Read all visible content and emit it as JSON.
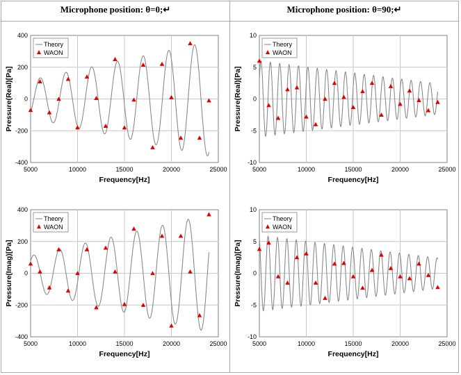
{
  "headers": {
    "left": "Microphone position: θ=0;↵",
    "right": "Microphone position: θ=90;↵"
  },
  "colors": {
    "theory_line": "#8a8a8a",
    "waon_marker": "#e00000",
    "grid": "#c8c8c8",
    "plot_bg": "#ffffff",
    "chart_bg": "#ffffff"
  },
  "chart_data": [
    {
      "id": "chart1",
      "type": "line",
      "title": "",
      "xlabel": "Frequency[Hz]",
      "ylabel": "Pressure(Real)[Pa]",
      "xlim": [
        5000,
        25000
      ],
      "ylim": [
        -400,
        400
      ],
      "xticks": [
        5000,
        10000,
        15000,
        20000,
        25000
      ],
      "yticks": [
        -400,
        -200,
        0,
        200,
        400
      ],
      "grid": true,
      "legend": "top-left",
      "legend_entries": [
        "Theory",
        "WAON"
      ],
      "theory_model": {
        "amp": [
          120,
          360
        ],
        "period_hz": 2740,
        "phase": -0.79,
        "f_start": 5000,
        "f_end": 24000
      },
      "series": [
        {
          "name": "WAON",
          "marker": "triangle",
          "x": [
            5000,
            6000,
            7000,
            8000,
            9000,
            10000,
            11000,
            12000,
            13000,
            14000,
            15000,
            16000,
            17000,
            18000,
            19000,
            20000,
            21000,
            22000,
            23000,
            24000
          ],
          "y": [
            -70,
            110,
            -85,
            0,
            125,
            -180,
            140,
            5,
            -170,
            250,
            -180,
            -5,
            215,
            -305,
            220,
            10,
            -245,
            350,
            -245,
            -10
          ]
        }
      ]
    },
    {
      "id": "chart2",
      "type": "line",
      "title": "",
      "xlabel": "Frequency[Hz]",
      "ylabel": "Pressure(Real)[Pa]",
      "xlim": [
        5000,
        25000
      ],
      "ylim": [
        -10,
        10
      ],
      "xticks": [
        5000,
        10000,
        15000,
        20000,
        25000
      ],
      "yticks": [
        -10,
        -5,
        0,
        5,
        10
      ],
      "grid": true,
      "legend": "top-left",
      "legend_entries": [
        "Theory",
        "WAON"
      ],
      "theory_model": {
        "amp": [
          6,
          2.4
        ],
        "period_hz": 1000,
        "phase": 0.5,
        "f_start": 5000,
        "f_end": 24000
      },
      "series": [
        {
          "name": "WAON",
          "marker": "triangle",
          "x": [
            5000,
            6000,
            7000,
            8000,
            9000,
            10000,
            11000,
            12000,
            13000,
            14000,
            15000,
            16000,
            17000,
            18000,
            19000,
            20000,
            21000,
            22000,
            23000,
            24000
          ],
          "y": [
            6,
            -1,
            -3,
            1.5,
            1.8,
            -2.8,
            -4,
            0,
            2.5,
            0.3,
            -1.3,
            1.2,
            2.5,
            -2.5,
            2,
            -0.8,
            1.3,
            -0.2,
            -1.8,
            -0.5
          ]
        }
      ]
    },
    {
      "id": "chart3",
      "type": "line",
      "title": "",
      "xlabel": "Frequency[Hz]",
      "ylabel": "Pressure(Imag)[Pa]",
      "xlim": [
        5000,
        25000
      ],
      "ylim": [
        -400,
        400
      ],
      "xticks": [
        5000,
        10000,
        15000,
        20000,
        25000
      ],
      "yticks": [
        -400,
        -200,
        0,
        200,
        400
      ],
      "grid": true,
      "legend": "top-left",
      "legend_entries": [
        "Theory",
        "WAON"
      ],
      "theory_model": {
        "amp": [
          110,
          370
        ],
        "period_hz": 2740,
        "phase": 0.78,
        "f_start": 5000,
        "f_end": 24000
      },
      "series": [
        {
          "name": "WAON",
          "marker": "triangle",
          "x": [
            5000,
            6000,
            7000,
            8000,
            9000,
            10000,
            11000,
            12000,
            13000,
            14000,
            15000,
            16000,
            17000,
            18000,
            19000,
            20000,
            21000,
            22000,
            23000,
            24000
          ],
          "y": [
            60,
            10,
            -90,
            150,
            -110,
            0,
            150,
            -215,
            160,
            10,
            -195,
            280,
            -200,
            0,
            235,
            -330,
            235,
            10,
            -265,
            370
          ]
        }
      ]
    },
    {
      "id": "chart4",
      "type": "line",
      "title": "",
      "xlabel": "Frequency[Hz]",
      "ylabel": "Pressure(Imag)[Pa]",
      "xlim": [
        5000,
        25000
      ],
      "ylim": [
        -10,
        10
      ],
      "xticks": [
        5000,
        10000,
        15000,
        20000,
        25000
      ],
      "yticks": [
        -10,
        -5,
        0,
        5,
        10
      ],
      "grid": true,
      "legend": "top-left",
      "legend_entries": [
        "Theory",
        "WAON"
      ],
      "theory_model": {
        "amp": [
          6,
          2.4
        ],
        "period_hz": 1000,
        "phase": 2.0,
        "f_start": 5000,
        "f_end": 24000
      },
      "series": [
        {
          "name": "WAON",
          "marker": "triangle",
          "x": [
            5000,
            6000,
            7000,
            8000,
            9000,
            10000,
            11000,
            12000,
            13000,
            14000,
            15000,
            16000,
            17000,
            18000,
            19000,
            20000,
            21000,
            22000,
            23000,
            24000
          ],
          "y": [
            3.8,
            4.8,
            -0.5,
            -1.5,
            2.5,
            3.1,
            -1.5,
            -3.9,
            1.5,
            1.6,
            -0.5,
            -2.3,
            0.5,
            2.9,
            0.8,
            -0.5,
            -0.8,
            1.5,
            -0.3,
            -2.2
          ]
        }
      ]
    }
  ]
}
